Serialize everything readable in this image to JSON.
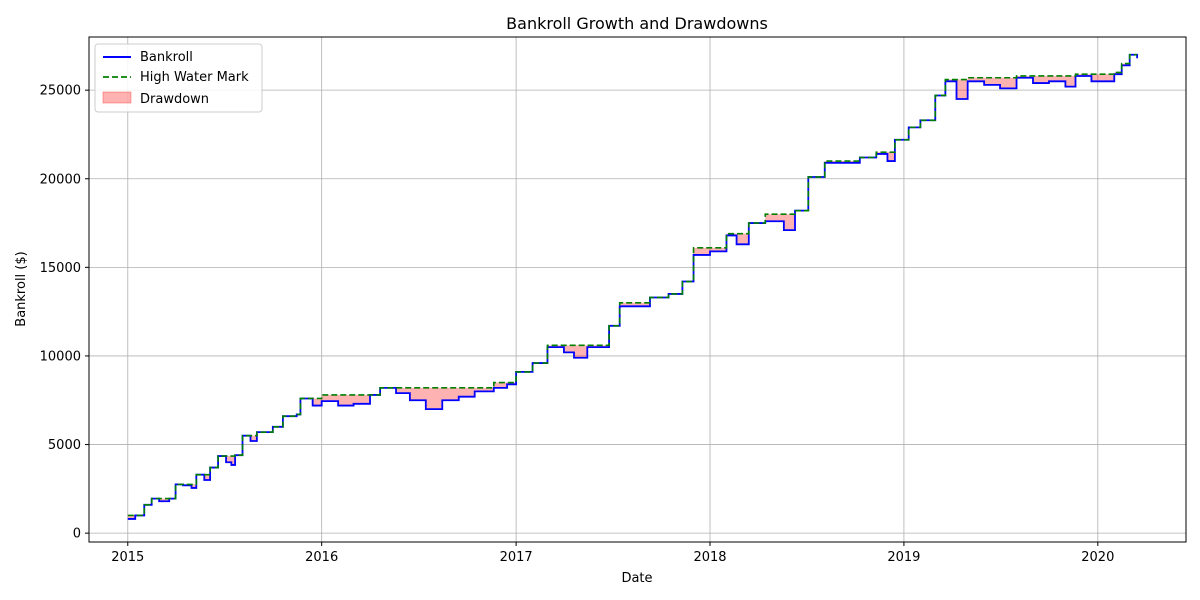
{
  "chart_data": {
    "type": "line",
    "title": "Bankroll Growth and Drawdowns",
    "xlabel": "Date",
    "ylabel": "Bankroll ($)",
    "xlim": [
      "2014-10-20",
      "2020-06-15"
    ],
    "ylim": [
      -500,
      28000
    ],
    "x_ticks": [
      "2015",
      "2016",
      "2017",
      "2018",
      "2019",
      "2020"
    ],
    "x_tick_dates": [
      "2015-01-01",
      "2016-01-01",
      "2017-01-01",
      "2018-01-01",
      "2019-01-01",
      "2020-01-01"
    ],
    "y_ticks": [
      0,
      5000,
      10000,
      15000,
      20000,
      25000
    ],
    "grid": true,
    "legend_position": "top-left",
    "legend": [
      {
        "label": "Bankroll",
        "style": "solid",
        "color": "#0000ff"
      },
      {
        "label": "High Water Mark",
        "style": "dashed",
        "color": "#008000"
      },
      {
        "label": "Drawdown",
        "style": "fill",
        "color": "#ff0000",
        "opacity": 0.3
      }
    ],
    "series": [
      {
        "name": "Bankroll",
        "color": "#0000ff",
        "points": [
          [
            "2015-01-01",
            800
          ],
          [
            "2015-01-15",
            1000
          ],
          [
            "2015-02-01",
            1600
          ],
          [
            "2015-02-15",
            1950
          ],
          [
            "2015-03-01",
            1800
          ],
          [
            "2015-03-20",
            1950
          ],
          [
            "2015-04-01",
            2750
          ],
          [
            "2015-04-15",
            2700
          ],
          [
            "2015-05-01",
            2550
          ],
          [
            "2015-05-10",
            3300
          ],
          [
            "2015-05-25",
            3000
          ],
          [
            "2015-06-05",
            3700
          ],
          [
            "2015-06-20",
            4350
          ],
          [
            "2015-07-05",
            4000
          ],
          [
            "2015-07-15",
            3850
          ],
          [
            "2015-07-22",
            4400
          ],
          [
            "2015-08-05",
            5500
          ],
          [
            "2015-08-20",
            5200
          ],
          [
            "2015-09-01",
            5700
          ],
          [
            "2015-10-01",
            6000
          ],
          [
            "2015-10-20",
            6600
          ],
          [
            "2015-11-15",
            6700
          ],
          [
            "2015-11-22",
            7600
          ],
          [
            "2015-12-15",
            7200
          ],
          [
            "2016-01-01",
            7450
          ],
          [
            "2016-02-01",
            7200
          ],
          [
            "2016-03-01",
            7300
          ],
          [
            "2016-04-01",
            7800
          ],
          [
            "2016-04-20",
            8200
          ],
          [
            "2016-05-20",
            7900
          ],
          [
            "2016-06-15",
            7500
          ],
          [
            "2016-07-15",
            7000
          ],
          [
            "2016-08-15",
            7500
          ],
          [
            "2016-09-15",
            7700
          ],
          [
            "2016-10-15",
            8000
          ],
          [
            "2016-11-20",
            8200
          ],
          [
            "2016-12-15",
            8400
          ],
          [
            "2017-01-01",
            9100
          ],
          [
            "2017-02-01",
            9600
          ],
          [
            "2017-03-01",
            10500
          ],
          [
            "2017-04-01",
            10200
          ],
          [
            "2017-04-20",
            9900
          ],
          [
            "2017-05-15",
            10500
          ],
          [
            "2017-06-15",
            10500
          ],
          [
            "2017-06-25",
            11700
          ],
          [
            "2017-07-15",
            12800
          ],
          [
            "2017-08-15",
            12800
          ],
          [
            "2017-09-10",
            13300
          ],
          [
            "2017-10-15",
            13500
          ],
          [
            "2017-11-10",
            14200
          ],
          [
            "2017-12-01",
            15700
          ],
          [
            "2018-01-01",
            15900
          ],
          [
            "2018-02-01",
            16800
          ],
          [
            "2018-02-20",
            16300
          ],
          [
            "2018-03-15",
            17500
          ],
          [
            "2018-04-15",
            17600
          ],
          [
            "2018-05-10",
            17600
          ],
          [
            "2018-05-20",
            17100
          ],
          [
            "2018-06-10",
            18200
          ],
          [
            "2018-07-05",
            20100
          ],
          [
            "2018-08-05",
            20900
          ],
          [
            "2018-09-05",
            20900
          ],
          [
            "2018-10-10",
            21200
          ],
          [
            "2018-11-10",
            21400
          ],
          [
            "2018-12-01",
            21000
          ],
          [
            "2018-12-15",
            22200
          ],
          [
            "2019-01-10",
            22900
          ],
          [
            "2019-02-01",
            23300
          ],
          [
            "2019-03-01",
            24700
          ],
          [
            "2019-03-20",
            25500
          ],
          [
            "2019-04-10",
            24500
          ],
          [
            "2019-05-01",
            25500
          ],
          [
            "2019-06-01",
            25300
          ],
          [
            "2019-07-01",
            25100
          ],
          [
            "2019-08-01",
            25700
          ],
          [
            "2019-09-01",
            25400
          ],
          [
            "2019-10-01",
            25500
          ],
          [
            "2019-11-01",
            25200
          ],
          [
            "2019-11-20",
            25800
          ],
          [
            "2019-12-20",
            25500
          ],
          [
            "2020-02-01",
            25900
          ],
          [
            "2020-02-15",
            26400
          ],
          [
            "2020-03-01",
            27000
          ],
          [
            "2020-03-15",
            26800
          ]
        ]
      },
      {
        "name": "High Water Mark",
        "color": "#008000",
        "points": [
          [
            "2015-01-01",
            1000
          ],
          [
            "2015-01-15",
            1000
          ],
          [
            "2015-02-01",
            1600
          ],
          [
            "2015-02-15",
            1950
          ],
          [
            "2015-03-01",
            1950
          ],
          [
            "2015-03-20",
            1950
          ],
          [
            "2015-04-01",
            2750
          ],
          [
            "2015-04-15",
            2750
          ],
          [
            "2015-05-01",
            2750
          ],
          [
            "2015-05-10",
            3300
          ],
          [
            "2015-05-25",
            3300
          ],
          [
            "2015-06-05",
            3700
          ],
          [
            "2015-06-20",
            4350
          ],
          [
            "2015-07-05",
            4350
          ],
          [
            "2015-07-15",
            4350
          ],
          [
            "2015-07-22",
            4400
          ],
          [
            "2015-08-05",
            5500
          ],
          [
            "2015-08-20",
            5500
          ],
          [
            "2015-09-01",
            5700
          ],
          [
            "2015-10-01",
            6000
          ],
          [
            "2015-10-20",
            6600
          ],
          [
            "2015-11-15",
            6700
          ],
          [
            "2015-11-22",
            7600
          ],
          [
            "2015-12-15",
            7600
          ],
          [
            "2016-01-01",
            7800
          ],
          [
            "2016-02-01",
            7800
          ],
          [
            "2016-03-01",
            7800
          ],
          [
            "2016-04-01",
            7800
          ],
          [
            "2016-04-20",
            8200
          ],
          [
            "2016-05-20",
            8200
          ],
          [
            "2016-06-15",
            8200
          ],
          [
            "2016-07-15",
            8200
          ],
          [
            "2016-08-15",
            8200
          ],
          [
            "2016-09-15",
            8200
          ],
          [
            "2016-10-15",
            8200
          ],
          [
            "2016-11-20",
            8500
          ],
          [
            "2016-12-15",
            8500
          ],
          [
            "2017-01-01",
            9100
          ],
          [
            "2017-02-01",
            9600
          ],
          [
            "2017-03-01",
            10600
          ],
          [
            "2017-04-01",
            10600
          ],
          [
            "2017-04-20",
            10600
          ],
          [
            "2017-05-15",
            10600
          ],
          [
            "2017-06-15",
            10600
          ],
          [
            "2017-06-25",
            11700
          ],
          [
            "2017-07-15",
            13000
          ],
          [
            "2017-08-15",
            13000
          ],
          [
            "2017-09-10",
            13300
          ],
          [
            "2017-10-15",
            13500
          ],
          [
            "2017-11-10",
            14200
          ],
          [
            "2017-12-01",
            16100
          ],
          [
            "2018-01-01",
            16100
          ],
          [
            "2018-02-01",
            16900
          ],
          [
            "2018-02-20",
            16900
          ],
          [
            "2018-03-15",
            17500
          ],
          [
            "2018-04-15",
            18000
          ],
          [
            "2018-05-10",
            18000
          ],
          [
            "2018-05-20",
            18000
          ],
          [
            "2018-06-10",
            18200
          ],
          [
            "2018-07-05",
            20100
          ],
          [
            "2018-08-05",
            21000
          ],
          [
            "2018-09-05",
            21000
          ],
          [
            "2018-10-10",
            21200
          ],
          [
            "2018-11-10",
            21500
          ],
          [
            "2018-12-01",
            21500
          ],
          [
            "2018-12-15",
            22200
          ],
          [
            "2019-01-10",
            22900
          ],
          [
            "2019-02-01",
            23300
          ],
          [
            "2019-03-01",
            24700
          ],
          [
            "2019-03-20",
            25600
          ],
          [
            "2019-04-10",
            25600
          ],
          [
            "2019-05-01",
            25700
          ],
          [
            "2019-06-01",
            25700
          ],
          [
            "2019-07-01",
            25700
          ],
          [
            "2019-08-01",
            25800
          ],
          [
            "2019-09-01",
            25800
          ],
          [
            "2019-10-01",
            25800
          ],
          [
            "2019-11-01",
            25800
          ],
          [
            "2019-11-20",
            25900
          ],
          [
            "2019-12-20",
            25900
          ],
          [
            "2020-02-01",
            26000
          ],
          [
            "2020-02-15",
            26500
          ],
          [
            "2020-03-01",
            27000
          ],
          [
            "2020-03-15",
            27000
          ]
        ]
      }
    ]
  }
}
